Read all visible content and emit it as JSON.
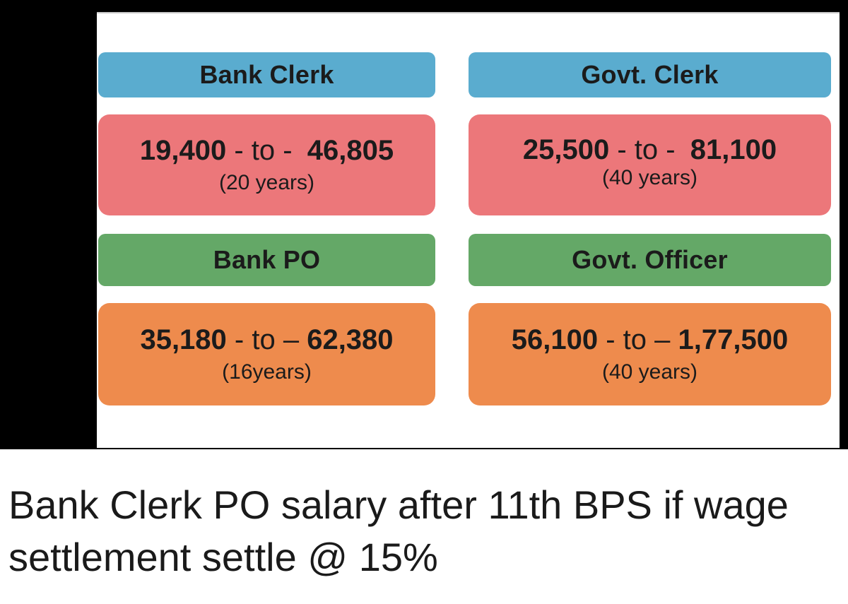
{
  "cards": {
    "bank_clerk": {
      "title": "Bank Clerk",
      "from": "19,400",
      "sep": "- to -",
      "to": "46,805",
      "years": "(20 years)"
    },
    "govt_clerk": {
      "title": "Govt. Clerk",
      "from": "25,500",
      "sep": "- to -",
      "to": "81,100",
      "years": "(40 years)"
    },
    "bank_po": {
      "title": "Bank PO",
      "from": "35,180",
      "sep": "- to –",
      "to": "62,380",
      "years": "(16years)"
    },
    "govt_officer": {
      "title": "Govt. Officer",
      "from": "56,100",
      "sep": "- to –",
      "to": "1,77,500",
      "years": "(40 years)"
    }
  },
  "colors": {
    "header_clerk": "#5aaccf",
    "range_clerk": "#ec777a",
    "header_officer": "#64a867",
    "range_officer": "#ee8b4d"
  },
  "caption": "Bank Clerk PO salary after 11th BPS if wage settlement settle @ 15%"
}
